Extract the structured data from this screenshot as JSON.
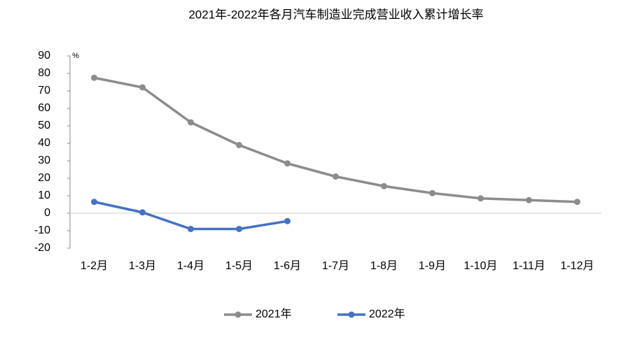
{
  "chart_data": {
    "type": "line",
    "title": "2021年-2022年各月汽车制造业完成营业收入累计增长率",
    "y_unit": "%",
    "categories": [
      "1-2月",
      "1-3月",
      "1-4月",
      "1-5月",
      "1-6月",
      "1-7月",
      "1-8月",
      "1-9月",
      "1-10月",
      "1-11月",
      "1-12月"
    ],
    "series": [
      {
        "name": "2021年",
        "color": "#8c8c8c",
        "values": [
          77.5,
          72,
          52,
          39,
          28.5,
          21,
          15.5,
          11.5,
          8.5,
          7.5,
          6.5
        ]
      },
      {
        "name": "2022年",
        "color": "#4472c4",
        "values": [
          6.5,
          0.5,
          -9,
          -9,
          -4.5,
          null,
          null,
          null,
          null,
          null,
          null
        ]
      }
    ],
    "ylim": [
      -20,
      90
    ],
    "yticks": [
      -20,
      -10,
      0,
      10,
      20,
      30,
      40,
      50,
      60,
      70,
      80,
      90
    ],
    "legend": "bottom"
  }
}
